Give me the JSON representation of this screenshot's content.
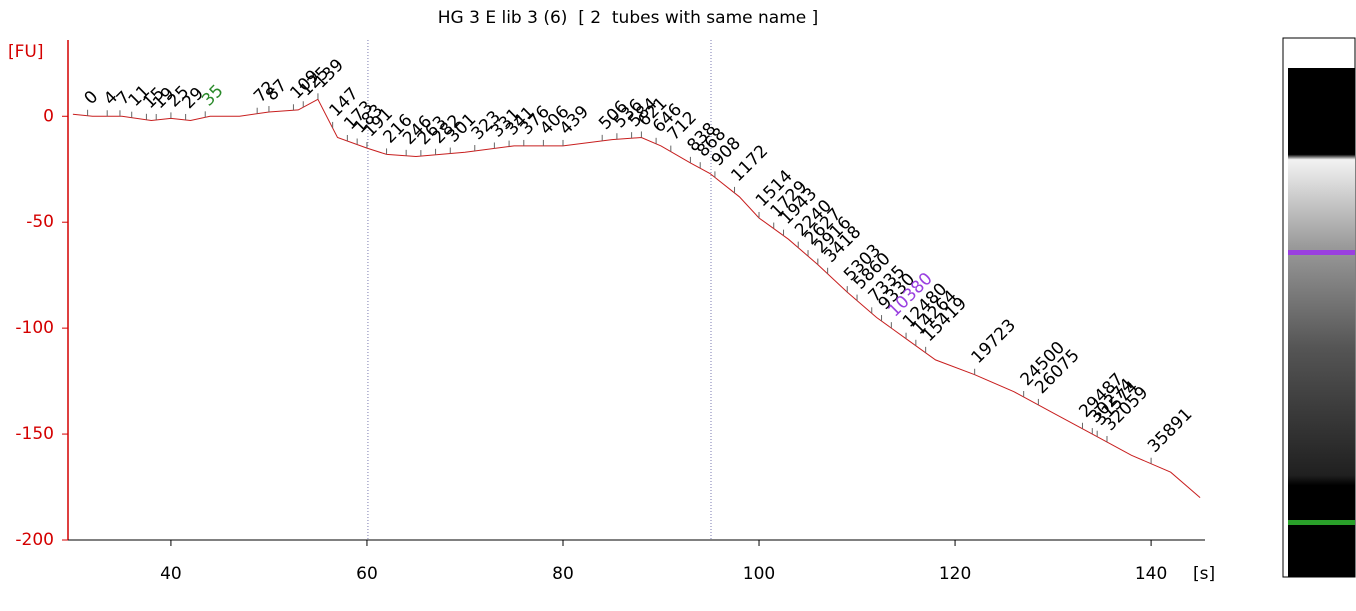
{
  "chart_data": {
    "type": "line",
    "title": "HG 3 E lib 3 (6)  [ 2  tubes with same name ]",
    "y_label": "[FU]",
    "x_label": "[s]",
    "xlim": [
      29.5,
      145.5
    ],
    "xticks": [
      40,
      60,
      80,
      100,
      120,
      140
    ],
    "ylim": [
      -200,
      36
    ],
    "yticks": [
      0,
      -50,
      -100,
      -150,
      -200
    ],
    "color": "#c81e1e",
    "axis_color": "#d40000",
    "markers": [
      60.1,
      95.1
    ],
    "x": [
      30,
      32,
      35,
      38,
      40,
      42,
      44,
      46,
      47,
      50,
      53,
      55,
      57,
      60,
      62,
      65,
      70,
      75,
      80,
      85,
      88,
      90,
      93,
      95,
      98,
      100,
      103,
      106,
      109,
      112,
      115,
      118,
      122,
      126,
      130,
      134,
      138,
      142,
      145
    ],
    "values": [
      1,
      0,
      0,
      -2,
      -1,
      -2,
      0,
      0,
      0,
      2,
      3,
      8,
      -10,
      -15,
      -18,
      -19,
      -17,
      -14,
      -14,
      -11,
      -10,
      -14,
      -22,
      -27,
      -38,
      -48,
      -58,
      -70,
      -83,
      -95,
      -105,
      -115,
      -122,
      -130,
      -140,
      -150,
      -160,
      -168,
      -180
    ],
    "peaks": [
      {
        "label": "0",
        "time": 31.5
      },
      {
        "label": "4",
        "time": 33.5
      },
      {
        "label": "7",
        "time": 34.8
      },
      {
        "label": "11",
        "time": 36
      },
      {
        "label": "15",
        "time": 37.5
      },
      {
        "label": "19",
        "time": 38.5
      },
      {
        "label": "25",
        "time": 40
      },
      {
        "label": "29",
        "time": 41.5
      },
      {
        "label": "35",
        "time": 43.5,
        "color": "#2a8a2a"
      },
      {
        "label": "72",
        "time": 48.8
      },
      {
        "label": "87",
        "time": 50
      },
      {
        "label": "109",
        "time": 52.5
      },
      {
        "label": "125",
        "time": 53.5
      },
      {
        "label": "139",
        "time": 55
      },
      {
        "label": "147",
        "time": 56.5
      },
      {
        "label": "173",
        "time": 58
      },
      {
        "label": "183",
        "time": 59
      },
      {
        "label": "191",
        "time": 60
      },
      {
        "label": "216",
        "time": 62
      },
      {
        "label": "246",
        "time": 64
      },
      {
        "label": "263",
        "time": 65.5
      },
      {
        "label": "282",
        "time": 67
      },
      {
        "label": "301",
        "time": 68.5
      },
      {
        "label": "323",
        "time": 71
      },
      {
        "label": "331",
        "time": 73
      },
      {
        "label": "341",
        "time": 74.5
      },
      {
        "label": "376",
        "time": 76
      },
      {
        "label": "406",
        "time": 78
      },
      {
        "label": "439",
        "time": 80
      },
      {
        "label": "506",
        "time": 84
      },
      {
        "label": "536",
        "time": 85.5
      },
      {
        "label": "584",
        "time": 87
      },
      {
        "label": "621",
        "time": 88
      },
      {
        "label": "646",
        "time": 89.5
      },
      {
        "label": "712",
        "time": 91
      },
      {
        "label": "838",
        "time": 93
      },
      {
        "label": "868",
        "time": 94
      },
      {
        "label": "908",
        "time": 95.5
      },
      {
        "label": "1172",
        "time": 97.5
      },
      {
        "label": "1514",
        "time": 100
      },
      {
        "label": "1729",
        "time": 101.5
      },
      {
        "label": "1943",
        "time": 102.5
      },
      {
        "label": "2240",
        "time": 104
      },
      {
        "label": "2627",
        "time": 105
      },
      {
        "label": "2916",
        "time": 106
      },
      {
        "label": "3418",
        "time": 107
      },
      {
        "label": "5303",
        "time": 109
      },
      {
        "label": "5860",
        "time": 110
      },
      {
        "label": "7335",
        "time": 111.5
      },
      {
        "label": "9330",
        "time": 112.5
      },
      {
        "label": "10380",
        "time": 113.5,
        "color": "#9a40e0"
      },
      {
        "label": "12480",
        "time": 115
      },
      {
        "label": "14264",
        "time": 116
      },
      {
        "label": "15419",
        "time": 117
      },
      {
        "label": "19723",
        "time": 122
      },
      {
        "label": "24500",
        "time": 127
      },
      {
        "label": "26075",
        "time": 128.5
      },
      {
        "label": "29487",
        "time": 133
      },
      {
        "label": "30274",
        "time": 134
      },
      {
        "label": "31574",
        "time": 134.5
      },
      {
        "label": "32059",
        "time": 135.5
      },
      {
        "label": "35891",
        "time": 140
      }
    ]
  }
}
